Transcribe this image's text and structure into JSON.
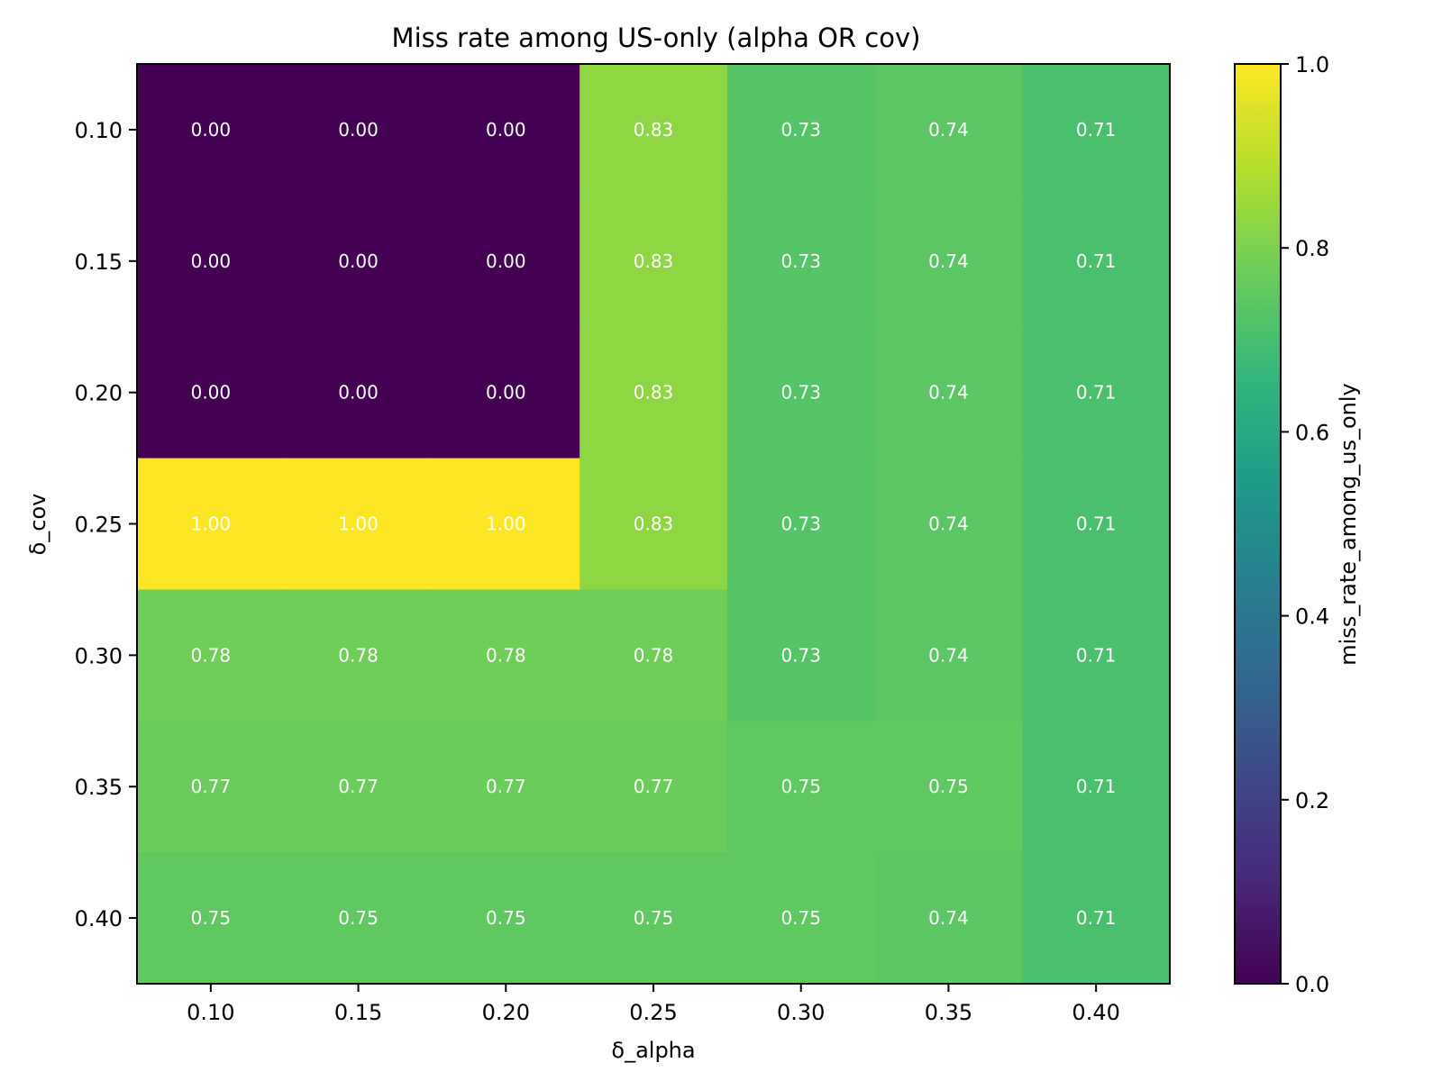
{
  "chart_data": {
    "type": "heatmap",
    "title": "Miss rate among US-only (alpha OR cov)",
    "xlabel": "δ_alpha",
    "ylabel": "δ_cov",
    "x_categories": [
      "0.10",
      "0.15",
      "0.20",
      "0.25",
      "0.30",
      "0.35",
      "0.40"
    ],
    "y_categories": [
      "0.10",
      "0.15",
      "0.20",
      "0.25",
      "0.30",
      "0.35",
      "0.40"
    ],
    "values": [
      [
        0.0,
        0.0,
        0.0,
        0.83,
        0.73,
        0.74,
        0.71
      ],
      [
        0.0,
        0.0,
        0.0,
        0.83,
        0.73,
        0.74,
        0.71
      ],
      [
        0.0,
        0.0,
        0.0,
        0.83,
        0.73,
        0.74,
        0.71
      ],
      [
        1.0,
        1.0,
        1.0,
        0.83,
        0.73,
        0.74,
        0.71
      ],
      [
        0.78,
        0.78,
        0.78,
        0.78,
        0.73,
        0.74,
        0.71
      ],
      [
        0.77,
        0.77,
        0.77,
        0.77,
        0.75,
        0.75,
        0.71
      ],
      [
        0.75,
        0.75,
        0.75,
        0.75,
        0.75,
        0.74,
        0.71
      ]
    ],
    "cell_labels": [
      [
        "0.00",
        "0.00",
        "0.00",
        "0.83",
        "0.73",
        "0.74",
        "0.71"
      ],
      [
        "0.00",
        "0.00",
        "0.00",
        "0.83",
        "0.73",
        "0.74",
        "0.71"
      ],
      [
        "0.00",
        "0.00",
        "0.00",
        "0.83",
        "0.73",
        "0.74",
        "0.71"
      ],
      [
        "1.00",
        "1.00",
        "1.00",
        "0.83",
        "0.73",
        "0.74",
        "0.71"
      ],
      [
        "0.78",
        "0.78",
        "0.78",
        "0.78",
        "0.73",
        "0.74",
        "0.71"
      ],
      [
        "0.77",
        "0.77",
        "0.77",
        "0.77",
        "0.75",
        "0.75",
        "0.71"
      ],
      [
        "0.75",
        "0.75",
        "0.75",
        "0.75",
        "0.75",
        "0.74",
        "0.71"
      ]
    ],
    "colorbar": {
      "label": "miss_rate_among_us_only",
      "range": [
        0.0,
        1.0
      ],
      "ticks": [
        0.0,
        0.2,
        0.4,
        0.6,
        0.8,
        1.0
      ],
      "tick_labels": [
        "0.0",
        "0.2",
        "0.4",
        "0.6",
        "0.8",
        "1.0"
      ],
      "colormap": "viridis"
    }
  },
  "colors": {
    "viridis": [
      "#440154",
      "#482878",
      "#3e4989",
      "#31688e",
      "#26828e",
      "#1f9e89",
      "#35b779",
      "#6ece58",
      "#b5de2b",
      "#fde725"
    ],
    "axis": "#000000",
    "annotation_text": "#ffffff",
    "background": "#ffffff"
  }
}
